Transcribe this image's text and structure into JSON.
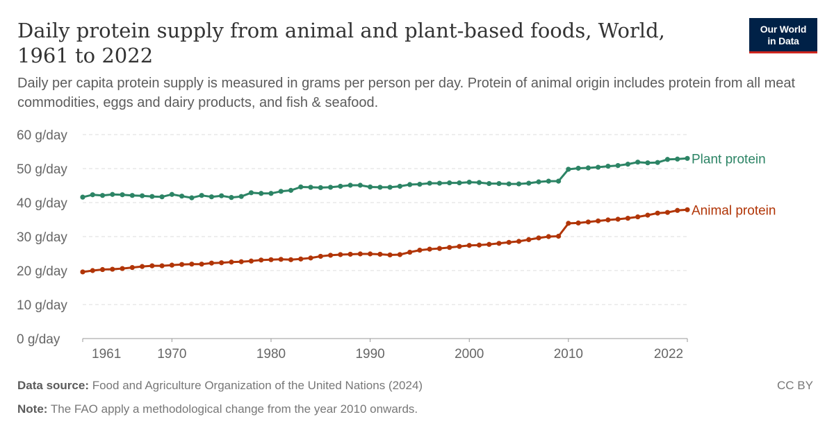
{
  "header": {
    "title": "Daily protein supply from animal and plant-based foods, World, 1961 to 2022",
    "subtitle": "Daily per capita protein supply is measured in grams per person per day. Protein of animal origin includes protein from all meat commodities, eggs and dairy products, and fish & seafood.",
    "logo_line1": "Our World",
    "logo_line2": "in Data"
  },
  "footer": {
    "source_label": "Data source:",
    "source_text": "Food and Agriculture Organization of the United Nations (2024)",
    "note_label": "Note:",
    "note_text": "The FAO apply a methodological change from the year 2010 onwards.",
    "license": "CC BY"
  },
  "chart_data": {
    "type": "line",
    "title": "Daily protein supply from animal and plant-based foods, World, 1961 to 2022",
    "xlabel": "",
    "ylabel": "",
    "xlim": [
      1961,
      2022
    ],
    "ylim": [
      0,
      60
    ],
    "grid": true,
    "y_ticks": [
      0,
      10,
      20,
      30,
      40,
      50,
      60
    ],
    "y_tick_labels": [
      "0 g/day",
      "10 g/day",
      "20 g/day",
      "30 g/day",
      "40 g/day",
      "50 g/day",
      "60 g/day"
    ],
    "x_ticks": [
      1961,
      1970,
      1980,
      1990,
      2000,
      2010,
      2022
    ],
    "x_tick_labels": [
      "1961",
      "1970",
      "1980",
      "1990",
      "2000",
      "2010",
      "2022"
    ],
    "legend": "inline-right",
    "x": [
      1961,
      1962,
      1963,
      1964,
      1965,
      1966,
      1967,
      1968,
      1969,
      1970,
      1971,
      1972,
      1973,
      1974,
      1975,
      1976,
      1977,
      1978,
      1979,
      1980,
      1981,
      1982,
      1983,
      1984,
      1985,
      1986,
      1987,
      1988,
      1989,
      1990,
      1991,
      1992,
      1993,
      1994,
      1995,
      1996,
      1997,
      1998,
      1999,
      2000,
      2001,
      2002,
      2003,
      2004,
      2005,
      2006,
      2007,
      2008,
      2009,
      2010,
      2011,
      2012,
      2013,
      2014,
      2015,
      2016,
      2017,
      2018,
      2019,
      2020,
      2021,
      2022
    ],
    "series": [
      {
        "name": "Plant protein",
        "color": "#2c8465",
        "values": [
          41.6,
          42.3,
          42.1,
          42.4,
          42.3,
          42.1,
          42.0,
          41.8,
          41.7,
          42.4,
          41.9,
          41.4,
          42.1,
          41.7,
          42.0,
          41.5,
          41.8,
          42.9,
          42.7,
          42.7,
          43.3,
          43.6,
          44.6,
          44.5,
          44.4,
          44.5,
          44.8,
          45.1,
          45.1,
          44.6,
          44.5,
          44.5,
          44.8,
          45.3,
          45.4,
          45.7,
          45.7,
          45.8,
          45.8,
          46.0,
          45.9,
          45.6,
          45.6,
          45.5,
          45.5,
          45.7,
          46.1,
          46.3,
          46.3,
          49.8,
          50.1,
          50.2,
          50.4,
          50.7,
          50.9,
          51.3,
          51.9,
          51.7,
          51.8,
          52.7,
          52.8,
          53.0
        ]
      },
      {
        "name": "Animal protein",
        "color": "#b13507",
        "values": [
          19.6,
          20.0,
          20.3,
          20.4,
          20.6,
          20.9,
          21.2,
          21.4,
          21.4,
          21.6,
          21.8,
          21.9,
          21.9,
          22.2,
          22.3,
          22.5,
          22.6,
          22.8,
          23.1,
          23.2,
          23.3,
          23.2,
          23.4,
          23.7,
          24.2,
          24.5,
          24.7,
          24.8,
          24.9,
          24.9,
          24.8,
          24.6,
          24.7,
          25.4,
          26.0,
          26.3,
          26.5,
          26.8,
          27.1,
          27.4,
          27.5,
          27.7,
          28.0,
          28.3,
          28.6,
          29.1,
          29.6,
          30.0,
          30.1,
          33.9,
          34.0,
          34.3,
          34.6,
          34.9,
          35.1,
          35.4,
          35.8,
          36.3,
          36.9,
          37.1,
          37.7,
          37.9
        ]
      }
    ]
  }
}
